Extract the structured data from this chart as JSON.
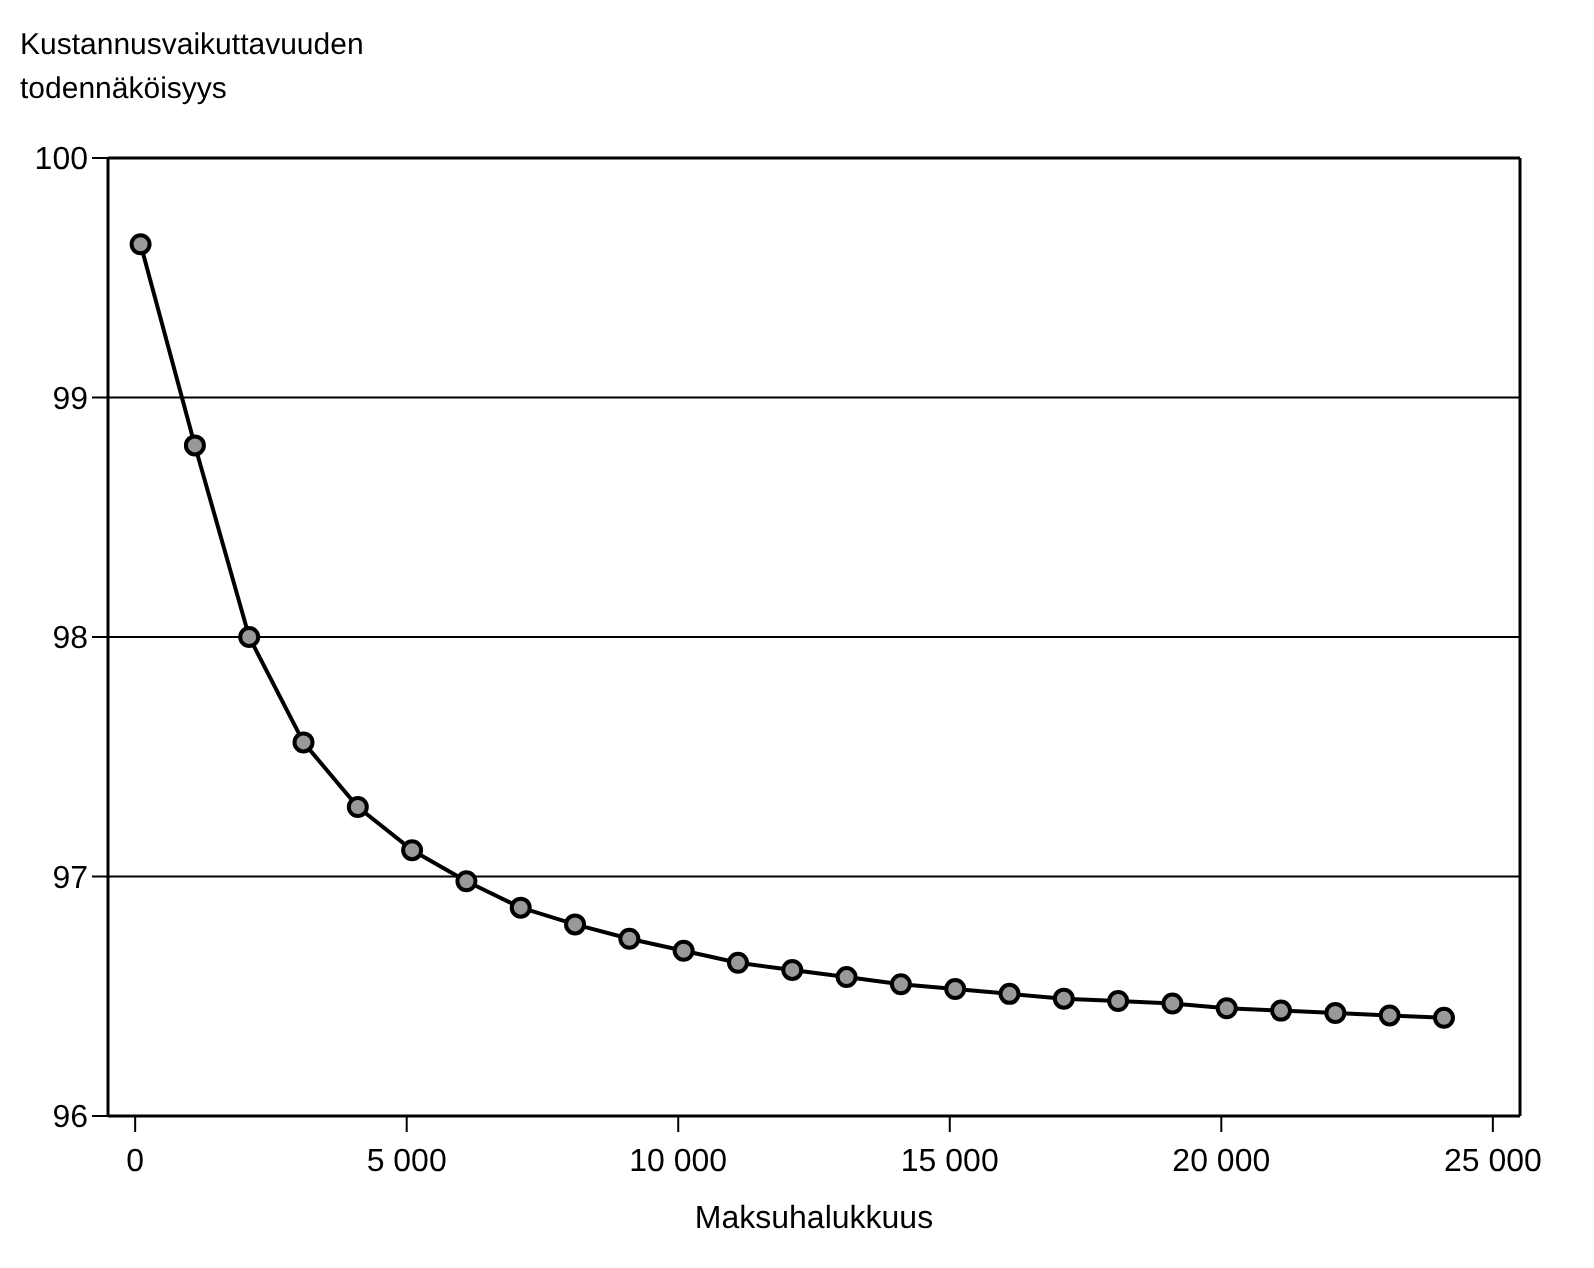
{
  "chart_data": {
    "type": "line",
    "ylabel": "Kustannusvaikuttavuuden todennäköisyys",
    "xlabel": "Maksuhalukkuus",
    "x": [
      100,
      1100,
      2100,
      3100,
      4100,
      5100,
      6100,
      7100,
      8100,
      9100,
      10100,
      11100,
      12100,
      13100,
      14100,
      15100,
      16100,
      17100,
      18100,
      19100,
      20100,
      21100,
      22100,
      23100,
      24100
    ],
    "series": [
      {
        "color": "#000000",
        "values": [
          99.64,
          98.8,
          98.0,
          97.56,
          97.29,
          97.11,
          96.98,
          96.87,
          96.8,
          96.74,
          96.69,
          96.64,
          96.61,
          96.58,
          96.55,
          96.53,
          96.51,
          96.49,
          96.48,
          96.47,
          96.45,
          96.44,
          96.43,
          96.42,
          96.41
        ]
      }
    ],
    "xlim": [
      -500,
      25500
    ],
    "xticks": [
      0,
      {
        "value": 5000,
        "label": "5 000"
      },
      {
        "value": 10000,
        "label": "10 000"
      },
      {
        "value": 15000,
        "label": "15 000"
      },
      {
        "value": 20000,
        "label": "20 000"
      },
      {
        "value": 25000,
        "label": "25 000"
      }
    ],
    "ylim": [
      96,
      100
    ],
    "yticks": [
      96,
      97,
      98,
      99,
      100
    ],
    "grid": "y",
    "marker": "circle",
    "line_style": "solid"
  }
}
